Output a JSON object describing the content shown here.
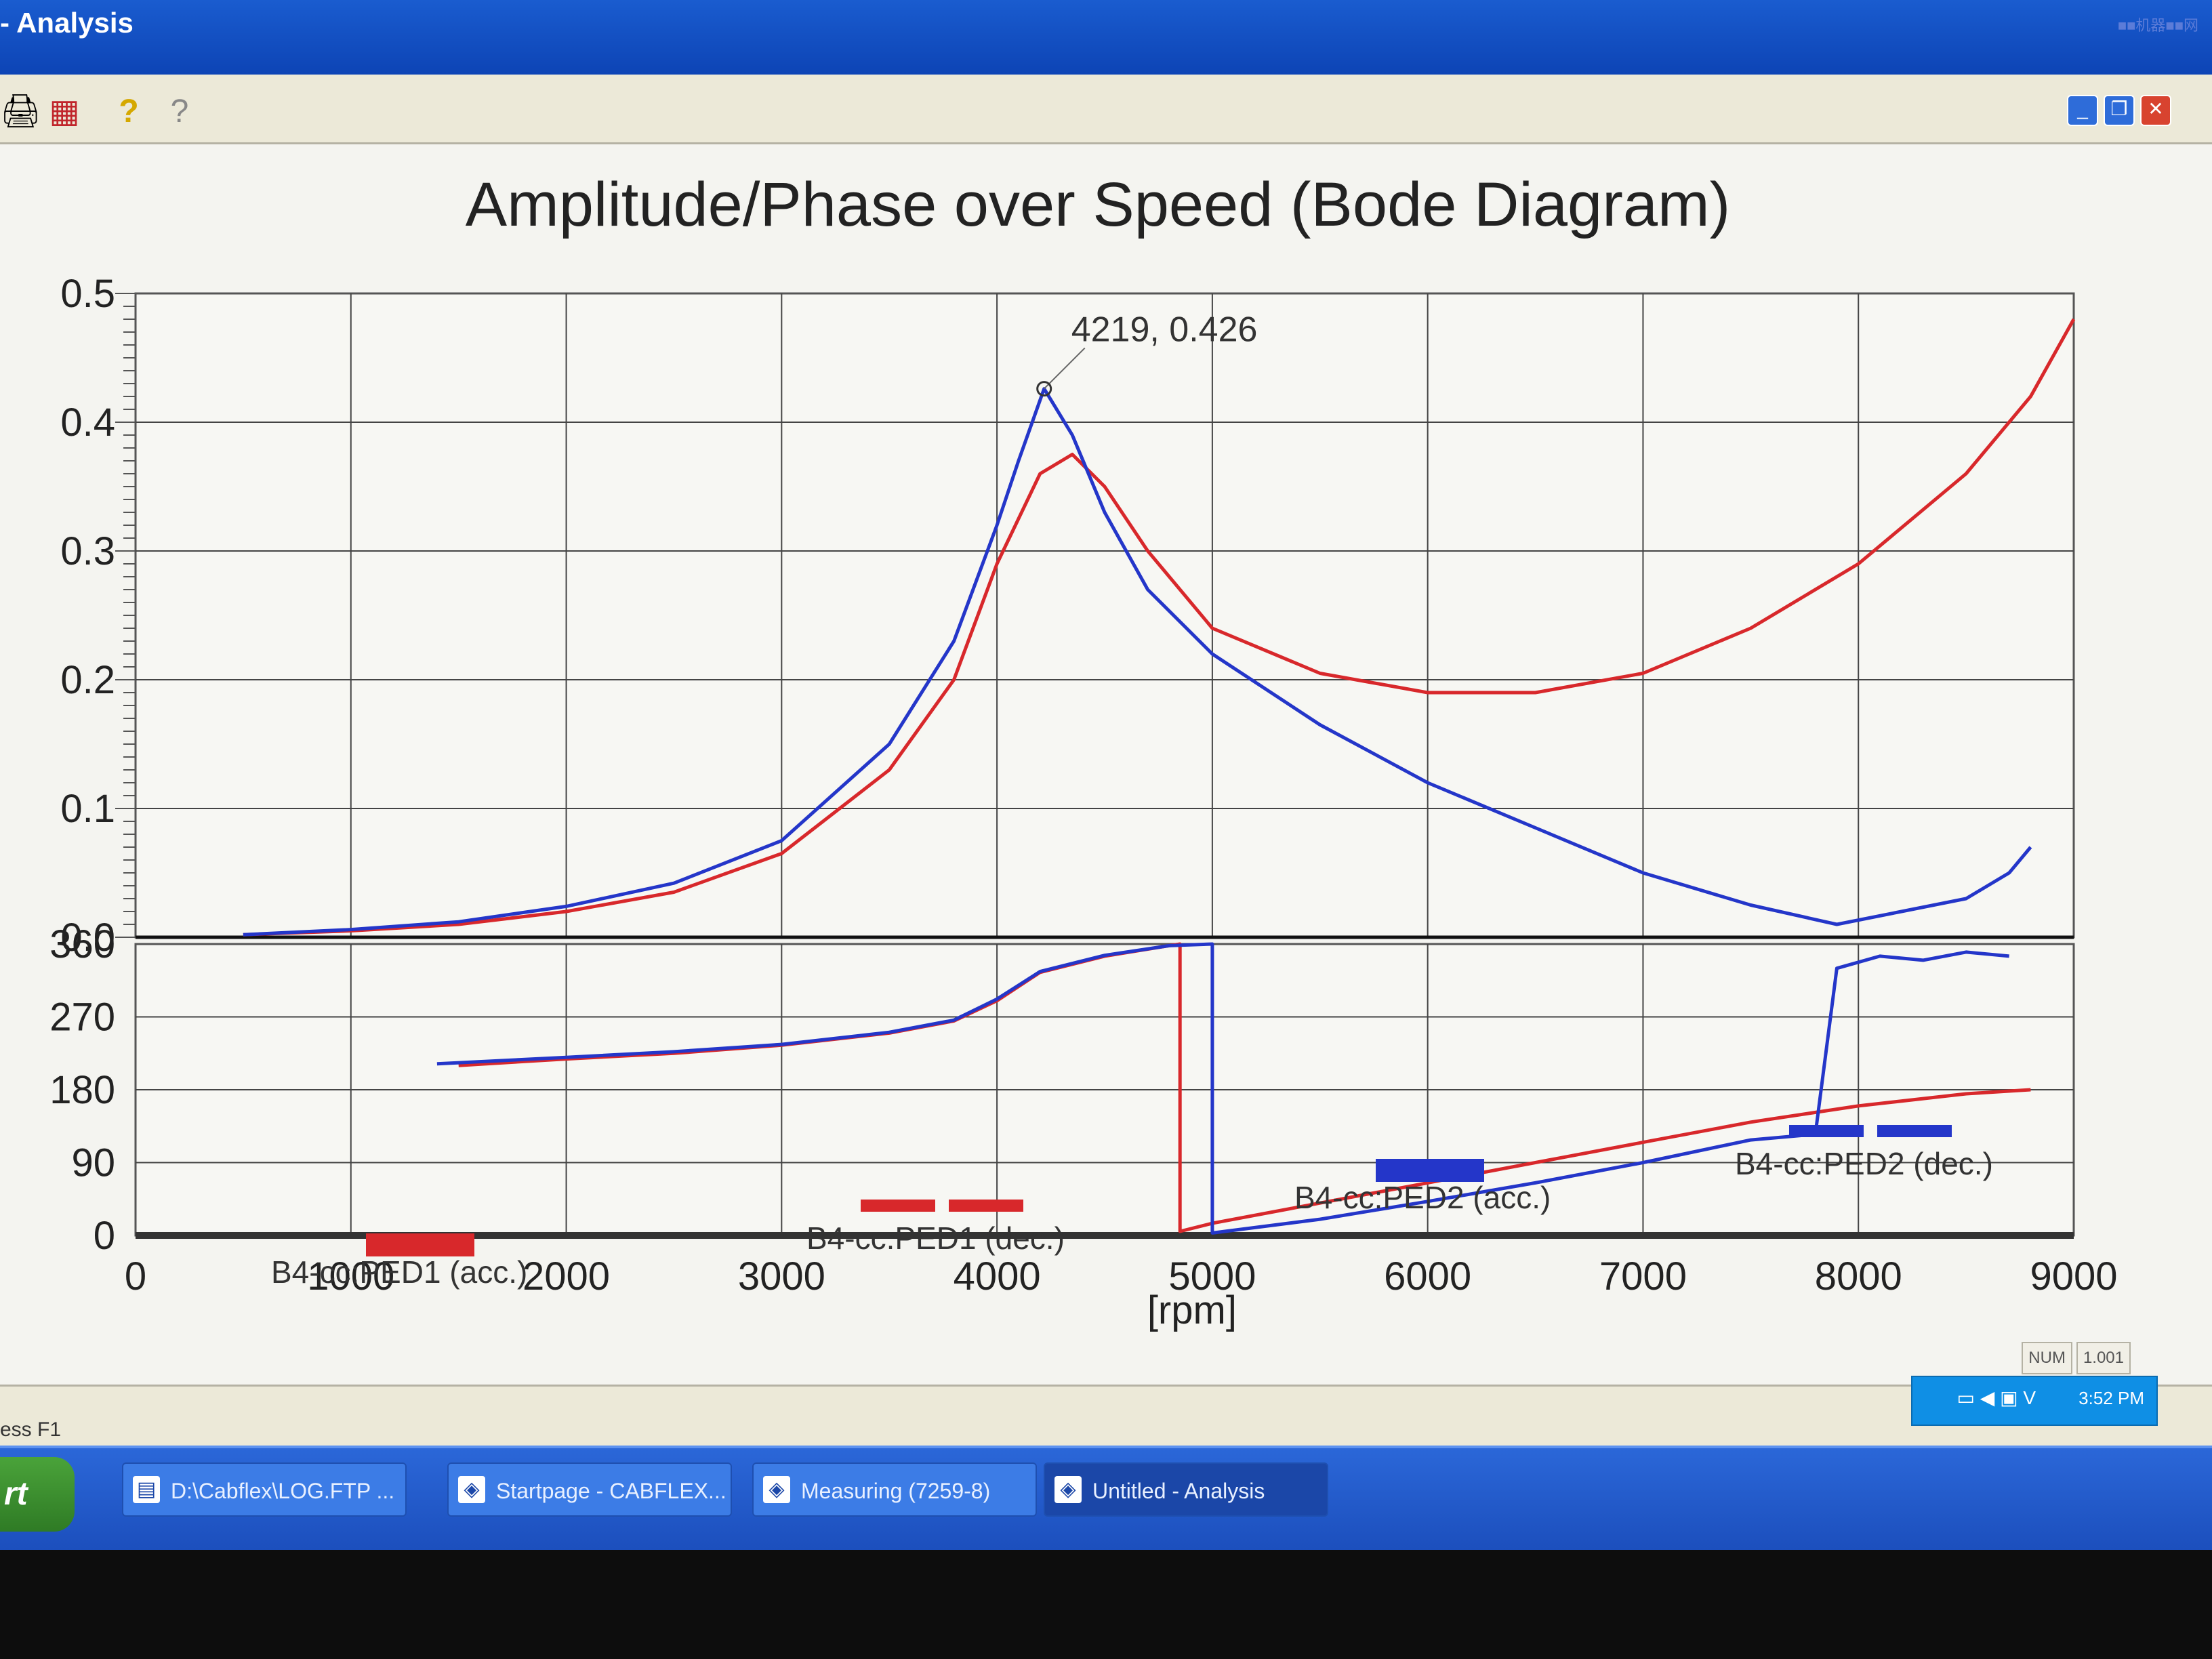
{
  "window": {
    "title": "- Analysis",
    "controls": [
      "_",
      "❐",
      "✕"
    ]
  },
  "watermark": "■■机器■■网",
  "toolbar": {
    "icons": [
      "print-icon",
      "chart-icon",
      "help-icon",
      "context-help-icon"
    ],
    "glyphs": [
      "🖨",
      "▦",
      "?",
      "?"
    ]
  },
  "chart_data": {
    "type": "line",
    "title": "Amplitude/Phase over Speed (Bode Diagram)",
    "xlabel": "[rpm]",
    "xlim": [
      0,
      9000
    ],
    "x_ticks": [
      "0",
      "1000",
      "2000",
      "3000",
      "4000",
      "5000",
      "6000",
      "7000",
      "8000",
      "9000"
    ],
    "amplitude": {
      "ylim": [
        0,
        0.5
      ],
      "y_ticks": [
        "0.0",
        "0.1",
        "0.2",
        "0.3",
        "0.4",
        "0.5"
      ]
    },
    "phase": {
      "ylim": [
        0,
        360
      ],
      "y_ticks": [
        "0",
        "90",
        "180",
        "270",
        "360"
      ]
    },
    "annotation": {
      "text": "4219, 0.426",
      "x": 4219,
      "y": 0.426
    },
    "series": [
      {
        "name": "B4-cc:PED1 (acc.)",
        "color": "#d8282b",
        "style": "solid",
        "amplitude": {
          "x": [
            500,
            1000,
            1500,
            2000,
            2500,
            3000,
            3500,
            3800,
            4000,
            4200,
            4350,
            4500,
            4700,
            5000,
            5500,
            6000,
            6500,
            7000,
            7500,
            8000,
            8500,
            8800,
            9000
          ],
          "y": [
            0.002,
            0.005,
            0.01,
            0.02,
            0.035,
            0.065,
            0.13,
            0.2,
            0.29,
            0.36,
            0.375,
            0.35,
            0.3,
            0.24,
            0.205,
            0.19,
            0.19,
            0.205,
            0.24,
            0.29,
            0.36,
            0.42,
            0.48
          ]
        },
        "phase": {
          "x": [
            1500,
            2000,
            2500,
            3000,
            3500,
            3800,
            4000,
            4200,
            4500,
            4800,
            4850,
            4850,
            5000,
            5500,
            6000,
            6500,
            7000,
            7500,
            8000,
            8500,
            8800
          ],
          "y": [
            210,
            218,
            225,
            235,
            250,
            265,
            290,
            325,
            345,
            358,
            360,
            5,
            15,
            40,
            65,
            90,
            115,
            140,
            160,
            175,
            180
          ]
        }
      },
      {
        "name": "B4-cc:PED1 (dec.)",
        "color": "#d8282b",
        "style": "dashed",
        "amplitude": {
          "x": [],
          "y": []
        },
        "phase": {
          "x": [],
          "y": []
        }
      },
      {
        "name": "B4-cc:PED2 (acc.)",
        "color": "#2436c9",
        "style": "solid",
        "amplitude": {
          "x": [
            500,
            1000,
            1500,
            2000,
            2500,
            3000,
            3500,
            3800,
            4000,
            4100,
            4219,
            4350,
            4500,
            4700,
            5000,
            5500,
            6000,
            6500,
            7000,
            7500,
            7900,
            8200,
            8500,
            8700,
            8800
          ],
          "y": [
            0.002,
            0.006,
            0.012,
            0.024,
            0.042,
            0.075,
            0.15,
            0.23,
            0.32,
            0.37,
            0.426,
            0.39,
            0.33,
            0.27,
            0.22,
            0.165,
            0.12,
            0.085,
            0.05,
            0.025,
            0.01,
            0.02,
            0.03,
            0.05,
            0.07
          ]
        },
        "phase": {
          "x": [
            1400,
            2000,
            2500,
            3000,
            3500,
            3800,
            4000,
            4200,
            4500,
            4800,
            5000,
            5000,
            5500,
            6000,
            6500,
            7000,
            7500,
            7800,
            7900,
            8100,
            8300,
            8500,
            8700
          ],
          "y": [
            212,
            220,
            227,
            236,
            251,
            266,
            292,
            326,
            346,
            358,
            360,
            3,
            20,
            42,
            65,
            90,
            118,
            125,
            330,
            345,
            340,
            350,
            345
          ]
        }
      },
      {
        "name": "B4-cc:PED2 (dec.)",
        "color": "#2436c9",
        "style": "dashed",
        "amplitude": {
          "x": [],
          "y": []
        },
        "phase": {
          "x": [],
          "y": []
        }
      }
    ]
  },
  "status": {
    "help_text": "ess F1",
    "num": "NUM",
    "zoom": "1.001"
  },
  "taskbar": {
    "start_label": "rt",
    "items": [
      {
        "label": "D:\\Cabflex\\LOG.FTP ...",
        "active": false
      },
      {
        "label": "Startpage - CABFLEX...",
        "active": false
      },
      {
        "label": "Measuring (7259-8)",
        "active": false
      },
      {
        "label": "Untitled - Analysis",
        "active": true
      }
    ],
    "clock": "3:52 PM"
  }
}
